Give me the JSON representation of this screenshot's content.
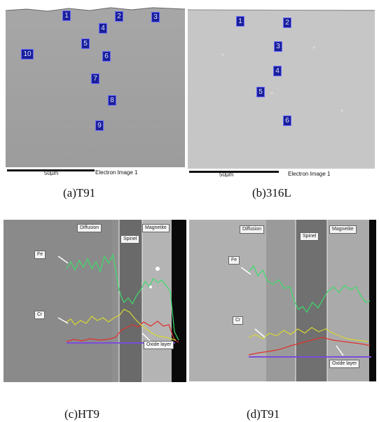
{
  "figure": {
    "captions": {
      "a": "(a)T91",
      "b": "(b)316L",
      "c": "(c)HT9",
      "d": "(d)T91"
    },
    "panel_a": {
      "markers": [
        "1",
        "2",
        "3",
        "4",
        "5",
        "6",
        "7",
        "8",
        "9",
        "10"
      ],
      "scalebar_label": "50µm",
      "image_label": "Electron Image 1"
    },
    "panel_b": {
      "markers": [
        "1",
        "2",
        "3",
        "4",
        "5",
        "6"
      ],
      "scalebar_label": "50µm",
      "image_label": "Electron Image 1"
    },
    "panel_c": {
      "labels": {
        "diffusion": "Diffusion",
        "spinel": "Spinel",
        "magnetite": "Magnetite",
        "fe": "Fe",
        "cr": "Cr",
        "oxide": "Oxide layer"
      }
    },
    "panel_d": {
      "labels": {
        "diffusion": "Diffusion",
        "spinel": "Spinel",
        "magnetite": "Magnetite",
        "fe": "Fe",
        "cr": "Cr",
        "oxide": "Oxide layer"
      }
    }
  },
  "colors": {
    "fe": "#3ddc6a",
    "cr": "#d8d832",
    "red": "#e0302c",
    "baseline": "#7a4dd8"
  }
}
